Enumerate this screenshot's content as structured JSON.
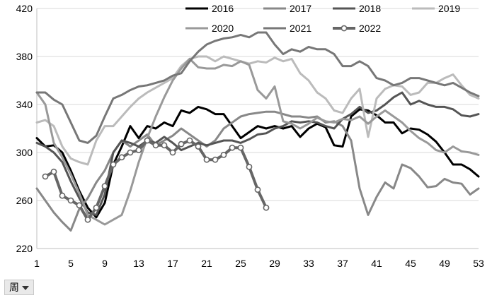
{
  "chart_data": {
    "type": "line",
    "title": "",
    "xlabel": "",
    "ylabel": "",
    "xlim": [
      1,
      53
    ],
    "ylim": [
      220,
      420
    ],
    "x_ticks": [
      1,
      5,
      9,
      13,
      17,
      21,
      25,
      29,
      33,
      37,
      41,
      45,
      49,
      53
    ],
    "y_ticks": [
      220,
      260,
      300,
      340,
      380,
      420
    ],
    "grid": true,
    "legend_position": "top",
    "series": [
      {
        "name": "2016",
        "color": "#000000",
        "markers": false,
        "width": 3,
        "x": [
          1,
          2,
          3,
          4,
          5,
          6,
          7,
          8,
          9,
          10,
          11,
          12,
          13,
          14,
          15,
          16,
          17,
          18,
          19,
          20,
          21,
          22,
          23,
          24,
          25,
          26,
          27,
          28,
          29,
          30,
          31,
          32,
          33,
          34,
          35,
          36,
          37,
          38,
          39,
          40,
          41,
          42,
          43,
          44,
          45,
          46,
          47,
          48,
          49,
          50,
          51,
          52,
          53
        ],
        "y": [
          312,
          305,
          306,
          300,
          285,
          268,
          254,
          246,
          258,
          290,
          305,
          322,
          312,
          322,
          320,
          325,
          322,
          335,
          333,
          338,
          336,
          332,
          332,
          322,
          312,
          317,
          322,
          320,
          322,
          320,
          322,
          313,
          320,
          324,
          321,
          306,
          305,
          330,
          336,
          335,
          331,
          325,
          325,
          316,
          320,
          319,
          315,
          309,
          300,
          290,
          290,
          286,
          280
        ]
      },
      {
        "name": "2017",
        "color": "#888888",
        "markers": false,
        "width": 3,
        "x": [
          1,
          2,
          3,
          4,
          5,
          6,
          7,
          8,
          9,
          10,
          11,
          12,
          13,
          14,
          15,
          16,
          17,
          18,
          19,
          20,
          21,
          22,
          23,
          24,
          25,
          26,
          27,
          28,
          29,
          30,
          31,
          32,
          33,
          34,
          35,
          36,
          37,
          38,
          39,
          40,
          41,
          42,
          43,
          44,
          45,
          46,
          47,
          48,
          49,
          50,
          51,
          52,
          53
        ],
        "y": [
          270,
          260,
          250,
          242,
          235,
          253,
          262,
          275,
          285,
          300,
          310,
          305,
          310,
          315,
          306,
          310,
          314,
          320,
          315,
          310,
          305,
          310,
          320,
          325,
          330,
          332,
          333,
          334,
          334,
          332,
          330,
          330,
          329,
          330,
          325,
          326,
          322,
          310,
          270,
          248,
          263,
          275,
          270,
          290,
          287,
          280,
          271,
          272,
          278,
          275,
          274,
          265,
          270
        ]
      },
      {
        "name": "2018",
        "color": "#555555",
        "markers": false,
        "width": 3,
        "x": [
          1,
          2,
          3,
          4,
          5,
          6,
          7,
          8,
          9,
          10,
          11,
          12,
          13,
          14,
          15,
          16,
          17,
          18,
          19,
          20,
          21,
          22,
          23,
          24,
          25,
          26,
          27,
          28,
          29,
          30,
          31,
          32,
          33,
          34,
          35,
          36,
          37,
          38,
          39,
          40,
          41,
          42,
          43,
          44,
          45,
          46,
          47,
          48,
          49,
          50,
          51,
          52,
          53
        ],
        "y": [
          308,
          305,
          300,
          292,
          276,
          262,
          250,
          248,
          265,
          300,
          310,
          308,
          305,
          310,
          308,
          313,
          308,
          302,
          305,
          308,
          306,
          308,
          310,
          310,
          308,
          311,
          315,
          316,
          320,
          322,
          326,
          325,
          326,
          325,
          322,
          320,
          328,
          332,
          338,
          333,
          335,
          340,
          346,
          350,
          340,
          343,
          340,
          338,
          338,
          336,
          331,
          330,
          332
        ]
      },
      {
        "name": "2019",
        "color": "#bbbbbb",
        "markers": false,
        "width": 3,
        "x": [
          1,
          2,
          3,
          4,
          5,
          6,
          7,
          8,
          9,
          10,
          11,
          12,
          13,
          14,
          15,
          16,
          17,
          18,
          19,
          20,
          21,
          22,
          23,
          24,
          25,
          26,
          27,
          28,
          29,
          30,
          31,
          32,
          33,
          34,
          35,
          36,
          37,
          38,
          39,
          40,
          41,
          42,
          43,
          44,
          45,
          46,
          47,
          48,
          49,
          50,
          51,
          52,
          53
        ],
        "y": [
          325,
          327,
          322,
          305,
          295,
          292,
          290,
          310,
          322,
          322,
          330,
          338,
          345,
          350,
          354,
          358,
          362,
          372,
          378,
          380,
          380,
          376,
          380,
          378,
          376,
          374,
          376,
          375,
          379,
          376,
          378,
          366,
          360,
          350,
          345,
          335,
          333,
          345,
          353,
          313,
          345,
          353,
          356,
          355,
          348,
          350,
          358,
          358,
          362,
          365,
          356,
          348,
          345
        ]
      },
      {
        "name": "2020",
        "color": "#999999",
        "markers": false,
        "width": 3,
        "x": [
          1,
          2,
          3,
          4,
          5,
          6,
          7,
          8,
          9,
          10,
          11,
          12,
          13,
          14,
          15,
          16,
          17,
          18,
          19,
          20,
          21,
          22,
          23,
          24,
          25,
          26,
          27,
          28,
          29,
          30,
          31,
          32,
          33,
          34,
          35,
          36,
          37,
          38,
          39,
          40,
          41,
          42,
          43,
          44,
          45,
          46,
          47,
          48,
          49,
          50,
          51,
          52,
          53
        ],
        "y": [
          350,
          340,
          308,
          296,
          282,
          266,
          248,
          244,
          240,
          244,
          248,
          268,
          292,
          312,
          330,
          346,
          360,
          370,
          378,
          371,
          370,
          370,
          373,
          372,
          376,
          373,
          352,
          345,
          355,
          326,
          324,
          320,
          324,
          329,
          326,
          325,
          328,
          327,
          330,
          324,
          330,
          335,
          330,
          325,
          318,
          312,
          308,
          302,
          300,
          305,
          301,
          300,
          298
        ]
      },
      {
        "name": "2021",
        "color": "#777777",
        "markers": false,
        "width": 3,
        "x": [
          1,
          2,
          3,
          4,
          5,
          6,
          7,
          8,
          9,
          10,
          11,
          12,
          13,
          14,
          15,
          16,
          17,
          18,
          19,
          20,
          21,
          22,
          23,
          24,
          25,
          26,
          27,
          28,
          29,
          30,
          31,
          32,
          33,
          34,
          35,
          36,
          37,
          38,
          39,
          40,
          41,
          42,
          43,
          44,
          45,
          46,
          47,
          48,
          49,
          50,
          51,
          52,
          53
        ],
        "y": [
          350,
          350,
          344,
          340,
          325,
          310,
          308,
          314,
          330,
          345,
          348,
          352,
          355,
          356,
          358,
          360,
          364,
          366,
          376,
          384,
          390,
          393,
          395,
          396,
          398,
          396,
          400,
          400,
          390,
          382,
          386,
          384,
          388,
          386,
          386,
          382,
          372,
          372,
          376,
          372,
          362,
          360,
          356,
          358,
          362,
          362,
          360,
          358,
          356,
          358,
          354,
          350,
          347
        ]
      },
      {
        "name": "2022",
        "color": "#666666",
        "markers": true,
        "width": 4,
        "x": [
          2,
          3,
          4,
          5,
          6,
          7,
          8,
          9,
          10,
          11,
          12,
          13,
          14,
          15,
          16,
          17,
          18,
          19,
          20,
          21,
          22,
          23,
          24,
          25,
          26,
          27,
          28
        ],
        "y": [
          280,
          284,
          264,
          260,
          256,
          244,
          254,
          272,
          290,
          296,
          300,
          302,
          310,
          306,
          306,
          300,
          307,
          310,
          305,
          294,
          294,
          298,
          304,
          304,
          288,
          269,
          254
        ]
      }
    ]
  },
  "axis_selector": {
    "label": "周"
  }
}
